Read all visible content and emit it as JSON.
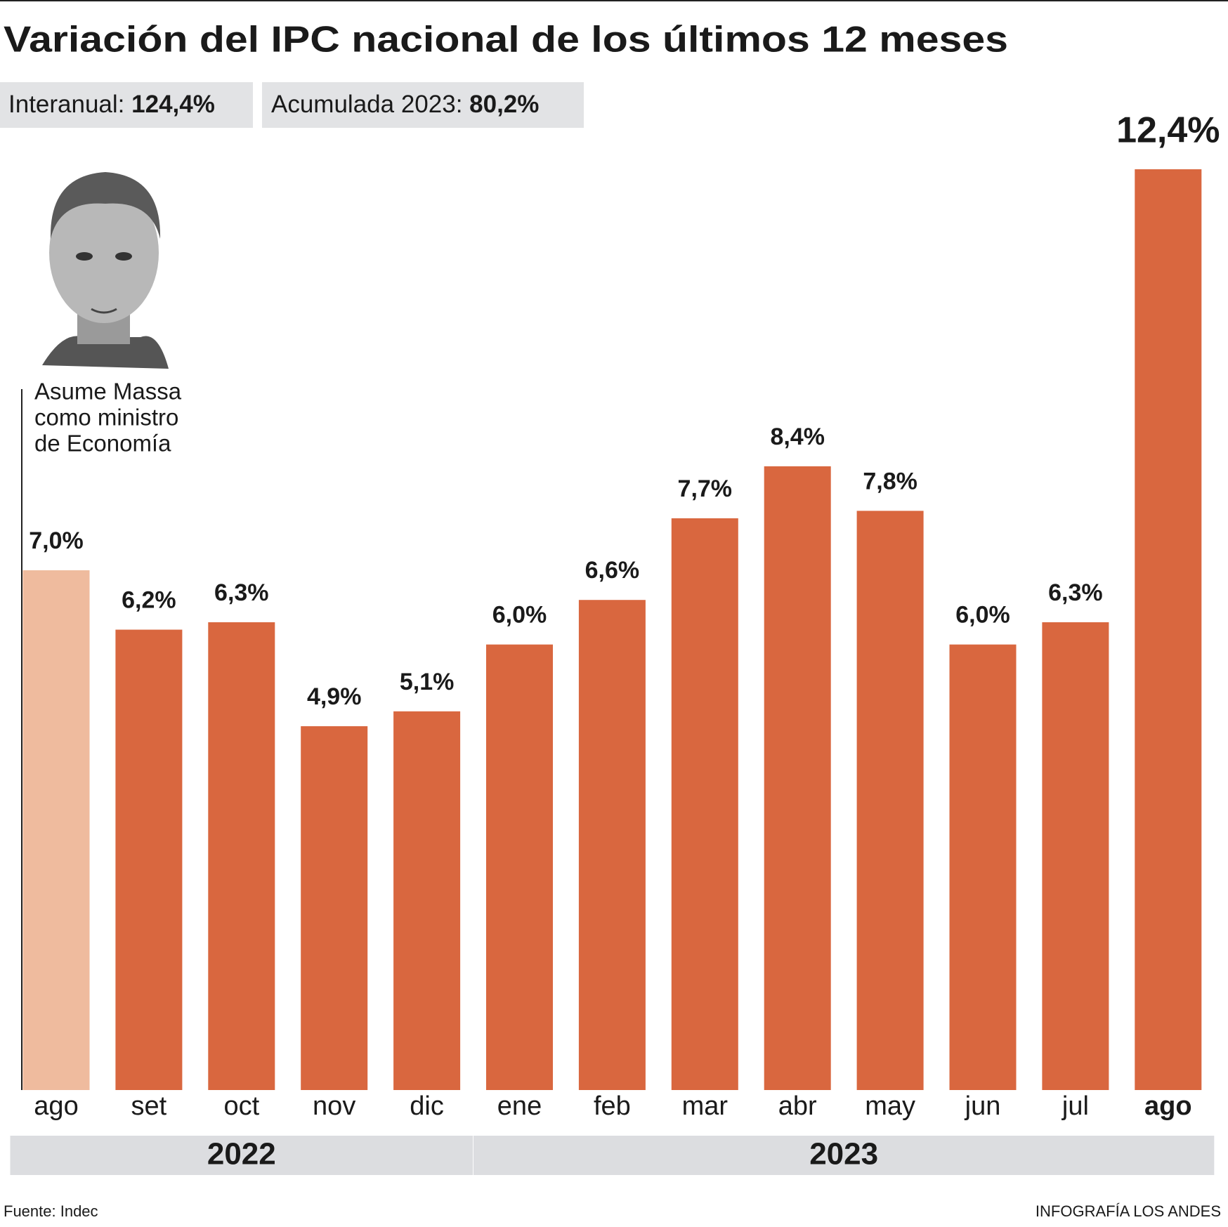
{
  "chart_data": {
    "type": "bar",
    "title": "Variación del IPC nacional de los últimos 12 meses",
    "stats": [
      {
        "label": "Interanual:",
        "value": "124,4%"
      },
      {
        "label": "Acumulada 2023:",
        "value": "80,2%"
      }
    ],
    "categories": [
      "ago",
      "set",
      "oct",
      "nov",
      "dic",
      "ene",
      "feb",
      "mar",
      "abr",
      "may",
      "jun",
      "jul",
      "ago"
    ],
    "values": [
      7.0,
      6.2,
      6.3,
      4.9,
      5.1,
      6.0,
      6.6,
      7.7,
      8.4,
      7.8,
      6.0,
      6.3,
      12.4
    ],
    "value_labels": [
      "7,0%",
      "6,2%",
      "6,3%",
      "4,9%",
      "5,1%",
      "6,0%",
      "6,6%",
      "7,7%",
      "8,4%",
      "7,8%",
      "6,0%",
      "6,3%",
      "12,4%"
    ],
    "colors": [
      "#efbb9e",
      "#d9673f",
      "#d9673f",
      "#d9673f",
      "#d9673f",
      "#d9673f",
      "#d9673f",
      "#d9673f",
      "#d9673f",
      "#d9673f",
      "#d9673f",
      "#d9673f",
      "#d9673f"
    ],
    "ylim": [
      0,
      12.4
    ],
    "year_groups": [
      {
        "label": "2022",
        "count": 5
      },
      {
        "label": "2023",
        "count": 8
      }
    ],
    "annotation": [
      "Asume Massa",
      "como ministro",
      "de Economía"
    ],
    "source": "Fuente: Indec",
    "credit": "INFOGRAFÍA LOS ANDES"
  }
}
